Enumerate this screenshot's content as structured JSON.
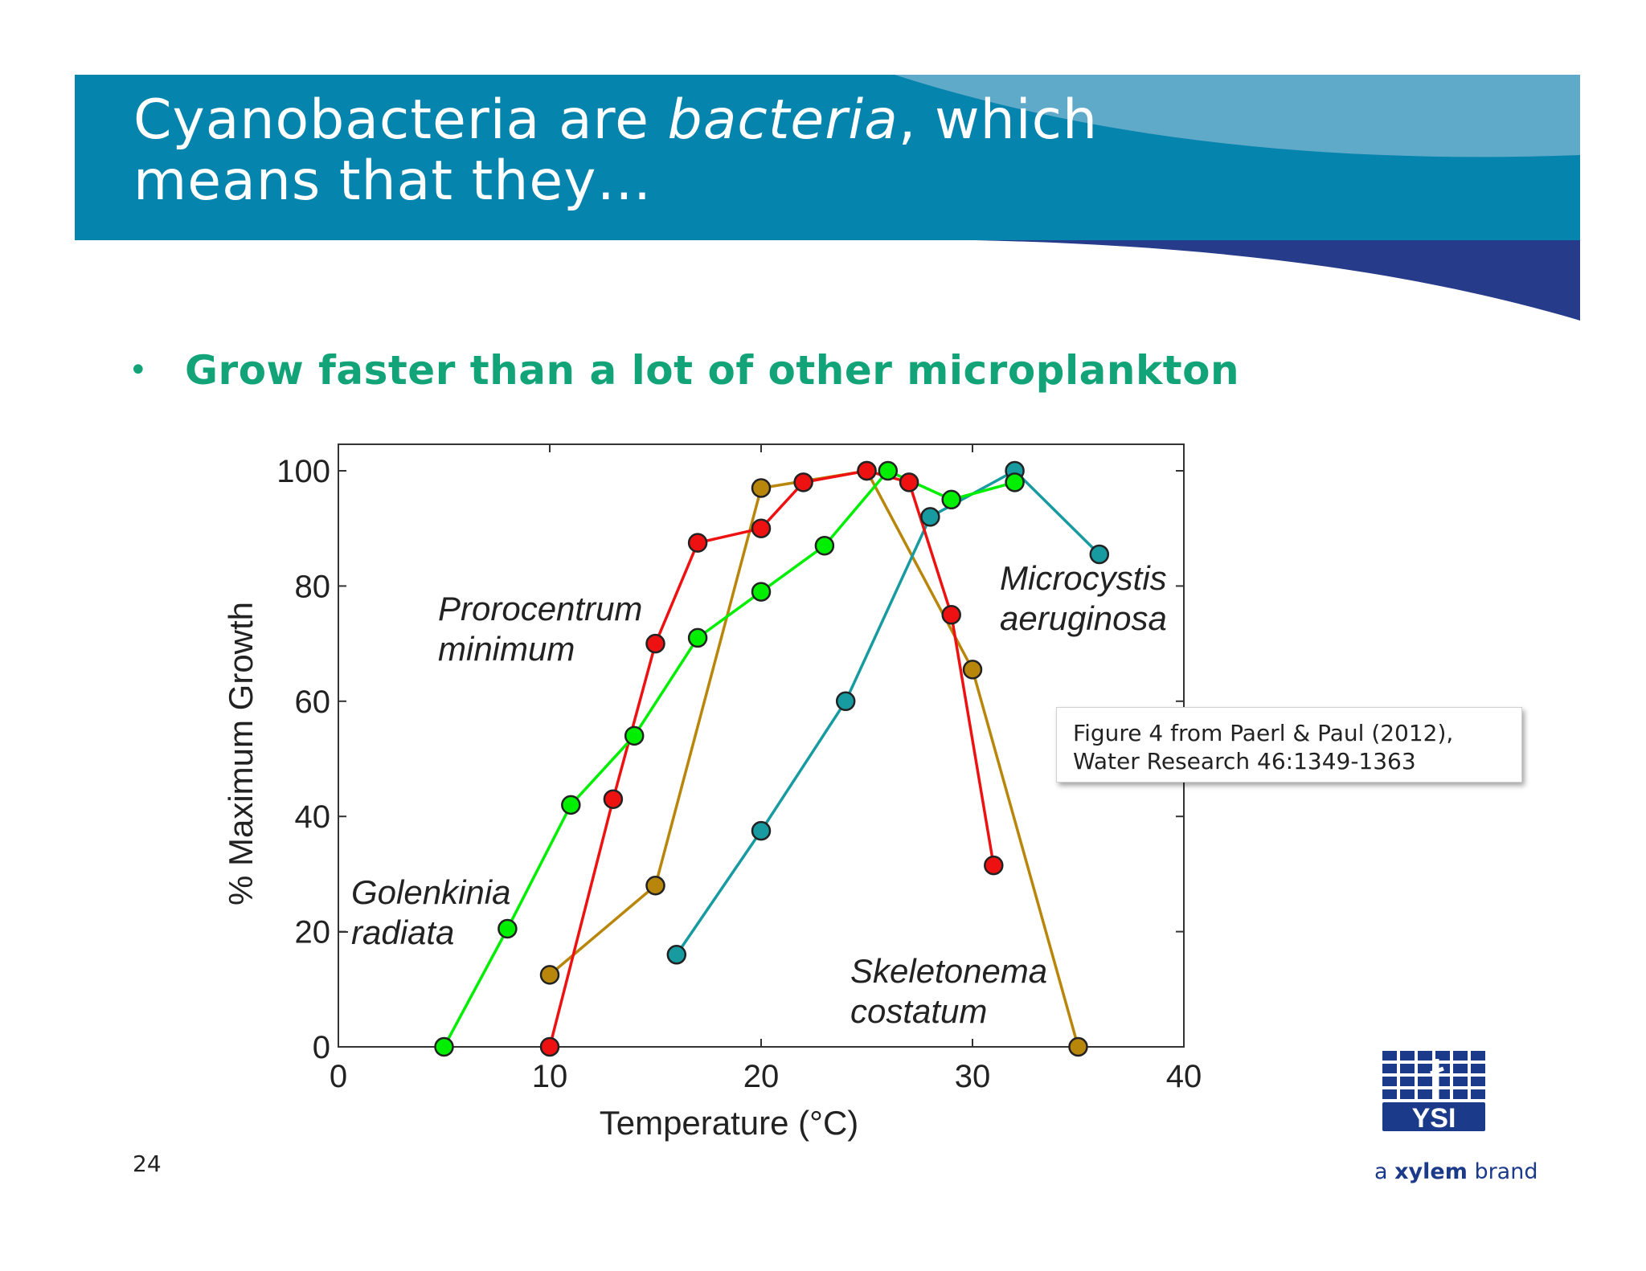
{
  "slide": {
    "title_part1": "Cyanobacteria are ",
    "title_italic": "bacteria",
    "title_part2": ", which",
    "title_line2": "means that they…",
    "bullet": "Grow faster than a lot of other microplankton",
    "page_number": "24",
    "citation_line1": "Figure 4 from Paerl & Paul (2012),",
    "citation_line2": "Water Research 46:1349-1363",
    "logo_text": "YSI",
    "logo_tagline_prefix": "a ",
    "logo_tagline_brand": "xylem",
    "logo_tagline_suffix": " brand",
    "colors": {
      "header_blue": "#0584ae",
      "header_light": "#5fa9c9",
      "header_navy": "#263b8a",
      "bullet_green": "#12a379",
      "logo_blue": "#1c3a8a"
    }
  },
  "chart_data": {
    "type": "line",
    "xlabel": "Temperature (°C)",
    "ylabel": "% Maximum Growth",
    "xlim": [
      0,
      40
    ],
    "ylim": [
      0,
      100
    ],
    "xticks": [
      0,
      10,
      20,
      30,
      40
    ],
    "yticks": [
      0,
      20,
      40,
      60,
      80,
      100
    ],
    "grid": false,
    "series": [
      {
        "name": "Golenkinia radiata",
        "label_lines": [
          "Golenkinia",
          "radiata"
        ],
        "color": "#00ee00",
        "points": [
          [
            5,
            0
          ],
          [
            8,
            20.5
          ],
          [
            11,
            42
          ],
          [
            14,
            54
          ],
          [
            17,
            71
          ],
          [
            20,
            79
          ],
          [
            23,
            87
          ],
          [
            26,
            100
          ],
          [
            29,
            95
          ],
          [
            32,
            98
          ]
        ]
      },
      {
        "name": "Prorocentrum minimum",
        "label_lines": [
          "Prorocentrum",
          "minimum"
        ],
        "color": "#ee1111",
        "points": [
          [
            10,
            0
          ],
          [
            13,
            43
          ],
          [
            15,
            70
          ],
          [
            17,
            87.5
          ],
          [
            20,
            90
          ],
          [
            22,
            98
          ],
          [
            25,
            100
          ],
          [
            27,
            98
          ],
          [
            29,
            75
          ],
          [
            31,
            31.5
          ]
        ]
      },
      {
        "name": "Skeletonema costatum",
        "label_lines": [
          "Skeletonema",
          "costatum"
        ],
        "color": "#b8860b",
        "points": [
          [
            10,
            12.5
          ],
          [
            15,
            28
          ],
          [
            20,
            97
          ],
          [
            25,
            100
          ],
          [
            30,
            65.5
          ],
          [
            35,
            0
          ]
        ]
      },
      {
        "name": "Microcystis aeruginosa",
        "label_lines": [
          "Microcystis",
          "aeruginosa"
        ],
        "color": "#179aa0",
        "points": [
          [
            16,
            16
          ],
          [
            20,
            37.5
          ],
          [
            24,
            60
          ],
          [
            28,
            92
          ],
          [
            32,
            100
          ],
          [
            36,
            85.5
          ]
        ]
      }
    ]
  }
}
